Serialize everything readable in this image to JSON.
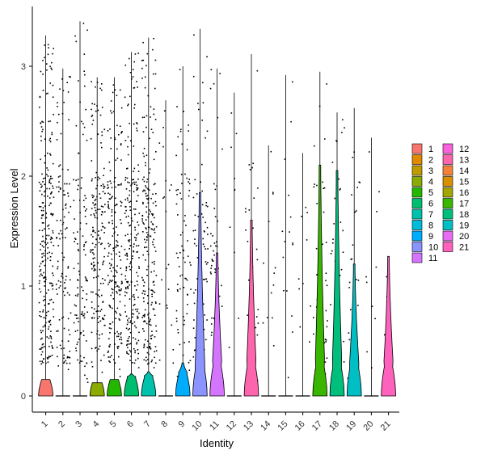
{
  "chart_data": {
    "type": "violin",
    "xlabel": "Identity",
    "ylabel": "Expression Level",
    "ylim": [
      -0.15,
      3.55
    ],
    "yticks": [
      0,
      1,
      2,
      3
    ],
    "categories": [
      "1",
      "2",
      "3",
      "4",
      "5",
      "6",
      "7",
      "8",
      "9",
      "10",
      "11",
      "12",
      "13",
      "14",
      "15",
      "16",
      "17",
      "18",
      "19",
      "20",
      "21"
    ],
    "colors": [
      "#F8766D",
      "#E18A00",
      "#BE9C00",
      "#8CAB00",
      "#24B700",
      "#00BE70",
      "#00C1AB",
      "#00BBDA",
      "#00ACFC",
      "#8B93FF",
      "#D575FE",
      "#F962DD",
      "#FF65AC",
      "#F4823A",
      "#D89000",
      "#A3A500",
      "#39B600",
      "#00BF7D",
      "#00BFC4",
      "#E76BF3",
      "#FF62BC"
    ],
    "legend_colors": [
      "#F8766D",
      "#E7851E",
      "#D09400",
      "#B2A100",
      "#89AC00",
      "#45B500",
      "#00BC51",
      "#00C087",
      "#00C0B2",
      "#00BCD6",
      "#00B3F2",
      "#29A3FF",
      "#9C8DFF",
      "#D277FF",
      "#F166E8",
      "#FF61C7",
      "#FF6C91",
      "#FF689F",
      "#FF6A98",
      "#FF6C8E",
      "#FF6C91"
    ],
    "max_values": [
      3.28,
      2.98,
      3.41,
      2.9,
      2.9,
      3.13,
      3.26,
      2.69,
      3.0,
      3.34,
      2.98,
      2.76,
      3.11,
      2.28,
      2.92,
      2.21,
      2.95,
      2.58,
      2.62,
      2.35,
      1.27
    ],
    "violin_height": [
      0.15,
      0.0,
      0.0,
      0.12,
      0.15,
      0.2,
      0.22,
      0.0,
      0.3,
      1.85,
      1.3,
      0.0,
      1.6,
      0.0,
      0.0,
      0.0,
      2.1,
      2.05,
      1.2,
      0.0,
      1.27
    ],
    "violin_halfwidth": [
      0.42,
      0.0,
      0.0,
      0.42,
      0.42,
      0.42,
      0.42,
      0.0,
      0.42,
      0.42,
      0.42,
      0.0,
      0.42,
      0.0,
      0.0,
      0.0,
      0.42,
      0.42,
      0.42,
      0.0,
      0.42
    ],
    "point_density": [
      1.0,
      0.45,
      0.45,
      0.7,
      0.75,
      0.85,
      0.85,
      0.08,
      0.3,
      0.3,
      0.18,
      0.04,
      0.12,
      0.05,
      0.06,
      0.04,
      0.18,
      0.12,
      0.08,
      0.04,
      0.02
    ],
    "legend_labels": [
      "1",
      "2",
      "3",
      "4",
      "5",
      "6",
      "7",
      "8",
      "9",
      "10",
      "11",
      "12",
      "13",
      "14",
      "15",
      "16",
      "17",
      "18",
      "19",
      "20",
      "21"
    ]
  }
}
